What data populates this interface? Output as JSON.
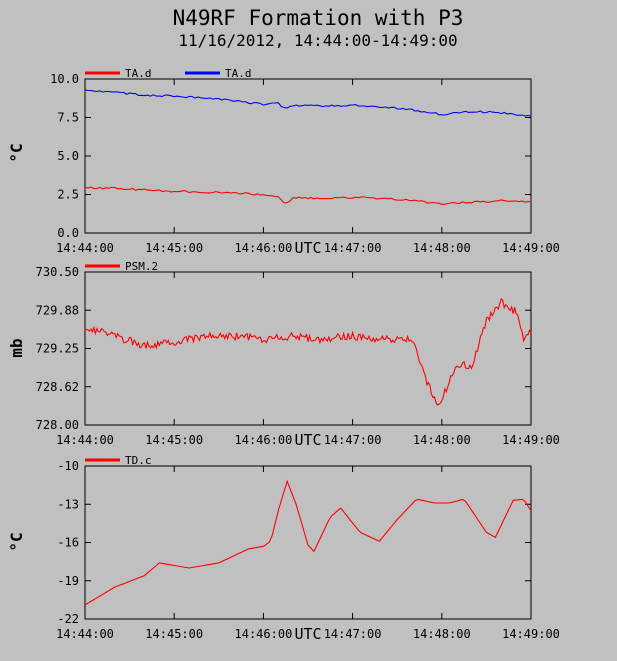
{
  "title": "N49RF Formation with P3",
  "subtitle": "11/16/2012, 14:44:00-14:49:00",
  "chart_data": [
    {
      "type": "line",
      "ylabel": "°C",
      "xlabel": "UTC",
      "ylim": [
        0.0,
        10.0
      ],
      "ytick_labels": [
        "0.0",
        "2.5",
        "5.0",
        "7.5",
        "10.0"
      ],
      "ytick_values": [
        0.0,
        2.5,
        5.0,
        7.5,
        10.0
      ],
      "xlim": [
        "14:44:00",
        "14:49:00"
      ],
      "xtick_labels": [
        "14:44:00",
        "14:45:00",
        "14:46:00",
        "14:47:00",
        "14:48:00",
        "14:49:00"
      ],
      "legend_position": "top-left",
      "series": [
        {
          "name": "TA.d",
          "color": "#ff0000",
          "points": [
            [
              "14:44:00",
              2.95
            ],
            [
              "14:44:20",
              2.9
            ],
            [
              "14:44:40",
              2.8
            ],
            [
              "14:45:00",
              2.7
            ],
            [
              "14:45:20",
              2.65
            ],
            [
              "14:45:40",
              2.6
            ],
            [
              "14:46:00",
              2.5
            ],
            [
              "14:46:10",
              2.3
            ],
            [
              "14:46:15",
              1.9
            ],
            [
              "14:46:20",
              2.3
            ],
            [
              "14:46:40",
              2.25
            ],
            [
              "14:47:00",
              2.3
            ],
            [
              "14:47:20",
              2.25
            ],
            [
              "14:47:40",
              2.1
            ],
            [
              "14:48:00",
              1.9
            ],
            [
              "14:48:20",
              2.0
            ],
            [
              "14:48:40",
              2.1
            ],
            [
              "14:49:00",
              2.0
            ]
          ]
        },
        {
          "name": "TA.d",
          "color": "#0000ff",
          "points": [
            [
              "14:44:00",
              9.3
            ],
            [
              "14:44:20",
              9.15
            ],
            [
              "14:44:40",
              8.95
            ],
            [
              "14:45:00",
              8.9
            ],
            [
              "14:45:20",
              8.75
            ],
            [
              "14:45:40",
              8.6
            ],
            [
              "14:46:00",
              8.35
            ],
            [
              "14:46:10",
              8.4
            ],
            [
              "14:46:15",
              8.05
            ],
            [
              "14:46:20",
              8.3
            ],
            [
              "14:46:40",
              8.25
            ],
            [
              "14:47:00",
              8.3
            ],
            [
              "14:47:20",
              8.2
            ],
            [
              "14:47:40",
              8.0
            ],
            [
              "14:48:00",
              7.7
            ],
            [
              "14:48:20",
              7.9
            ],
            [
              "14:48:40",
              7.8
            ],
            [
              "14:49:00",
              7.6
            ]
          ]
        }
      ]
    },
    {
      "type": "line",
      "ylabel": "mb",
      "xlabel": "UTC",
      "ylim": [
        728.0,
        730.5
      ],
      "ytick_labels": [
        "728.00",
        "728.62",
        "729.25",
        "729.88",
        "730.50"
      ],
      "ytick_values": [
        728.0,
        728.625,
        729.25,
        729.875,
        730.5
      ],
      "xlim": [
        "14:44:00",
        "14:49:00"
      ],
      "xtick_labels": [
        "14:44:00",
        "14:45:00",
        "14:46:00",
        "14:47:00",
        "14:48:00",
        "14:49:00"
      ],
      "legend_position": "top-left",
      "series": [
        {
          "name": "PSM.2",
          "color": "#ff0000",
          "points": [
            [
              "14:44:00",
              729.6
            ],
            [
              "14:44:20",
              729.45
            ],
            [
              "14:44:40",
              729.3
            ],
            [
              "14:45:00",
              729.35
            ],
            [
              "14:45:20",
              729.45
            ],
            [
              "14:45:40",
              729.45
            ],
            [
              "14:46:00",
              729.4
            ],
            [
              "14:46:20",
              729.45
            ],
            [
              "14:46:40",
              729.4
            ],
            [
              "14:47:00",
              729.45
            ],
            [
              "14:47:20",
              729.4
            ],
            [
              "14:47:40",
              729.4
            ],
            [
              "14:47:50",
              728.7
            ],
            [
              "14:47:57",
              728.3
            ],
            [
              "14:48:05",
              728.7
            ],
            [
              "14:48:10",
              729.0
            ],
            [
              "14:48:20",
              728.95
            ],
            [
              "14:48:30",
              729.7
            ],
            [
              "14:48:40",
              730.0
            ],
            [
              "14:48:50",
              729.85
            ],
            [
              "14:48:55",
              729.4
            ],
            [
              "14:49:00",
              729.55
            ]
          ]
        }
      ]
    },
    {
      "type": "line",
      "ylabel": "°C",
      "xlabel": "UTC",
      "ylim": [
        -22,
        -10
      ],
      "ytick_labels": [
        "-22",
        "-19",
        "-16",
        "-13",
        "-10"
      ],
      "ytick_values": [
        -22,
        -19,
        -16,
        -13,
        -10
      ],
      "xlim": [
        "14:44:00",
        "14:49:00"
      ],
      "xtick_labels": [
        "14:44:00",
        "14:45:00",
        "14:46:00",
        "14:47:00",
        "14:48:00",
        "14:49:00"
      ],
      "legend_position": "top-left",
      "series": [
        {
          "name": "TD.c",
          "color": "#ff0000",
          "points": [
            [
              "14:44:00",
              -20.9
            ],
            [
              "14:44:20",
              -19.5
            ],
            [
              "14:44:40",
              -18.6
            ],
            [
              "14:44:50",
              -17.6
            ],
            [
              "14:45:00",
              -17.8
            ],
            [
              "14:45:10",
              -18.0
            ],
            [
              "14:45:30",
              -17.6
            ],
            [
              "14:45:50",
              -16.5
            ],
            [
              "14:46:00",
              -16.3
            ],
            [
              "14:46:05",
              -15.9
            ],
            [
              "14:46:10",
              -13.5
            ],
            [
              "14:46:16",
              -11.2
            ],
            [
              "14:46:22",
              -13.0
            ],
            [
              "14:46:30",
              -16.2
            ],
            [
              "14:46:34",
              -16.7
            ],
            [
              "14:46:45",
              -14.0
            ],
            [
              "14:46:52",
              -13.3
            ],
            [
              "14:47:05",
              -15.2
            ],
            [
              "14:47:18",
              -15.9
            ],
            [
              "14:47:30",
              -14.2
            ],
            [
              "14:47:43",
              -12.6
            ],
            [
              "14:47:55",
              -12.9
            ],
            [
              "14:48:05",
              -12.9
            ],
            [
              "14:48:15",
              -12.6
            ],
            [
              "14:48:30",
              -15.2
            ],
            [
              "14:48:36",
              -15.6
            ],
            [
              "14:48:48",
              -12.7
            ],
            [
              "14:48:55",
              -12.6
            ],
            [
              "14:49:00",
              -13.5
            ]
          ]
        }
      ]
    }
  ]
}
